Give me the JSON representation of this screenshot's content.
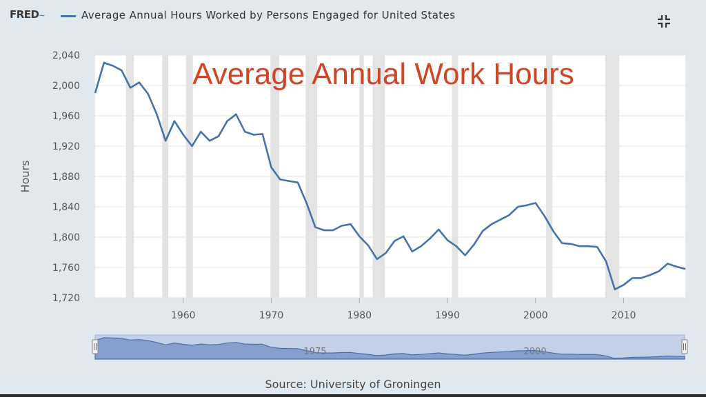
{
  "header": {
    "logo_text": "FRED",
    "logo_mark": "~",
    "series_title": "Average Annual Hours Worked by Persons Engaged for United States",
    "fullscreen_icon": "collapse-icon"
  },
  "overlay_title": "Average Annual Work Hours",
  "source": "Source: University of Groningen",
  "colors": {
    "series": "#4572a7",
    "recession": "#e3e3e3",
    "overlay_title": "#d14525",
    "navigator_fill": "#c3d0e8"
  },
  "chart_data": {
    "type": "line",
    "ylabel": "Hours",
    "ylim": [
      1720,
      2040
    ],
    "xlim": [
      1950,
      2017
    ],
    "yticks": [
      "2,040",
      "2,000",
      "1,960",
      "1,920",
      "1,880",
      "1,840",
      "1,800",
      "1,760",
      "1,720"
    ],
    "xticks": [
      "1960",
      "1970",
      "1980",
      "1990",
      "2000",
      "2010"
    ],
    "navigator_labels": [
      "1975",
      "2000"
    ],
    "grid": true,
    "recessions": [
      [
        1953.5,
        1954.4
      ],
      [
        1957.6,
        1958.3
      ],
      [
        1960.3,
        1961.1
      ],
      [
        1969.9,
        1970.9
      ],
      [
        1973.9,
        1975.2
      ],
      [
        1980.0,
        1980.5
      ],
      [
        1981.5,
        1982.9
      ],
      [
        1990.5,
        1991.2
      ],
      [
        2001.2,
        2001.9
      ],
      [
        2007.9,
        2009.5
      ]
    ],
    "series": [
      {
        "name": "Average Annual Hours Worked by Persons Engaged for United States",
        "x": [
          1950,
          1951,
          1952,
          1953,
          1954,
          1955,
          1956,
          1957,
          1958,
          1959,
          1960,
          1961,
          1962,
          1963,
          1964,
          1965,
          1966,
          1967,
          1968,
          1969,
          1970,
          1971,
          1972,
          1973,
          1974,
          1975,
          1976,
          1977,
          1978,
          1979,
          1980,
          1981,
          1982,
          1983,
          1984,
          1985,
          1986,
          1987,
          1988,
          1989,
          1990,
          1991,
          1992,
          1993,
          1994,
          1995,
          1996,
          1997,
          1998,
          1999,
          2000,
          2001,
          2002,
          2003,
          2004,
          2005,
          2006,
          2007,
          2008,
          2009,
          2010,
          2011,
          2012,
          2013,
          2014,
          2015,
          2016,
          2017
        ],
        "values": [
          1990,
          2030,
          2026,
          2020,
          1997,
          2004,
          1989,
          1962,
          1927,
          1953,
          1935,
          1920,
          1939,
          1927,
          1933,
          1953,
          1962,
          1939,
          1935,
          1936,
          1892,
          1876,
          1874,
          1872,
          1845,
          1813,
          1809,
          1809,
          1815,
          1817,
          1801,
          1789,
          1771,
          1779,
          1795,
          1801,
          1781,
          1788,
          1798,
          1810,
          1796,
          1788,
          1776,
          1790,
          1808,
          1817,
          1823,
          1829,
          1840,
          1842,
          1845,
          1828,
          1808,
          1792,
          1791,
          1788,
          1788,
          1787,
          1768,
          1731,
          1737,
          1746,
          1746,
          1750,
          1755,
          1765,
          1761,
          1758
        ]
      }
    ]
  }
}
